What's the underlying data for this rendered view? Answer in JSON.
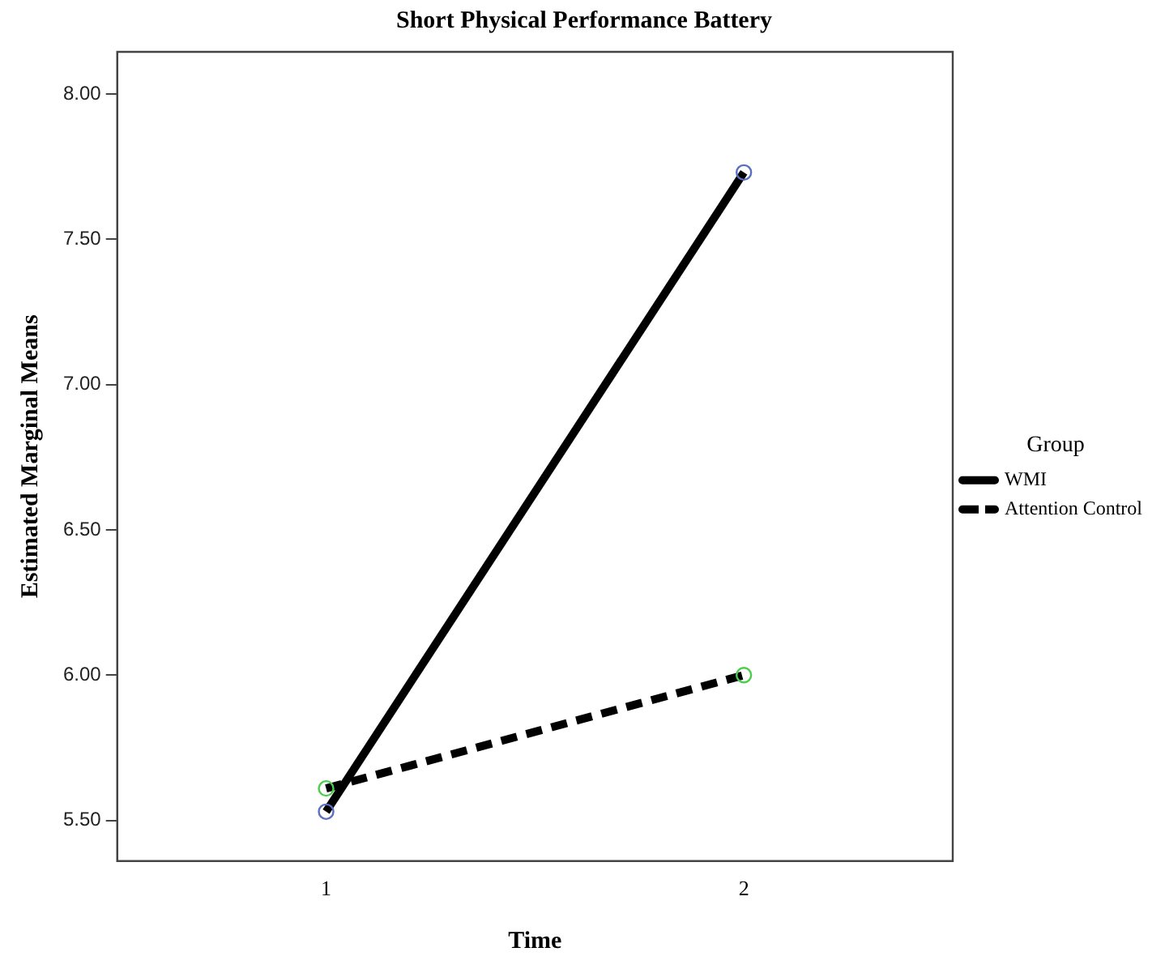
{
  "chart_data": {
    "type": "line",
    "title": "Short Physical Performance Battery",
    "xlabel": "Time",
    "ylabel": "Estimated Marginal Means",
    "legend_title": "Group",
    "categories": [
      "1",
      "2"
    ],
    "series": [
      {
        "name": "WMI",
        "color": "#000000",
        "colors": [
          "#5b6fc0",
          "#5b6fc0"
        ],
        "line_style": "solid",
        "values": [
          5.53,
          7.73
        ]
      },
      {
        "name": "Attention Control",
        "color": "#000000",
        "colors": [
          "#4ccd4c",
          "#4ccd4c"
        ],
        "line_style": "dashed",
        "values": [
          5.61,
          6.0
        ]
      }
    ],
    "ylim": [
      5.36,
      8.145
    ],
    "yticks": [
      {
        "value": 5.5,
        "label": "5.50"
      },
      {
        "value": 6,
        "label": "6.00"
      },
      {
        "value": 6.5,
        "label": "6.50"
      },
      {
        "value": 7,
        "label": "7.00"
      },
      {
        "value": 7.5,
        "label": "7.50"
      },
      {
        "value": 8,
        "label": "8.00"
      }
    ],
    "grid": false,
    "legend": "right",
    "marker": "circle"
  }
}
